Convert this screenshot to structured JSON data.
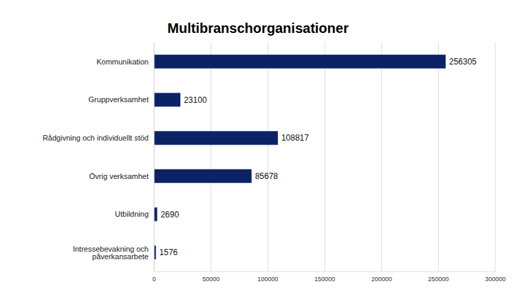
{
  "chart_data": {
    "type": "bar",
    "title": "Multibranschorganisationer",
    "orientation": "horizontal",
    "categories": [
      "Kommunikation",
      "Gruppverksamhet",
      "Rådgivning och individuellt stöd",
      "Övrig verksamhet",
      "Utbildning",
      "Intressebevakning och påverkansarbete"
    ],
    "values": [
      256305,
      23100,
      108817,
      85678,
      2690,
      1576
    ],
    "color": "#0b2265",
    "xlim": [
      0,
      300000
    ],
    "xticks": [
      0,
      50000,
      100000,
      150000,
      200000,
      250000,
      300000
    ],
    "grid": true,
    "data_labels": true
  }
}
